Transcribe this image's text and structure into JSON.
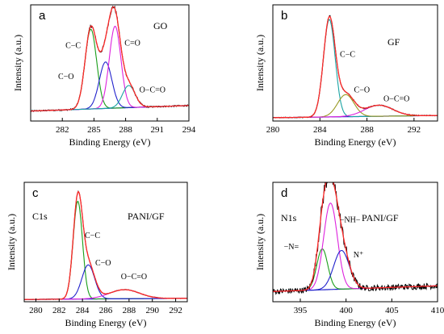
{
  "chart_data": [
    {
      "type": "line",
      "panel_label": "a",
      "title": "GO",
      "subtitle": "",
      "xlabel": "Binding Energy (eV)",
      "ylabel": "Intensity (a.u.)",
      "xlim": [
        279,
        294
      ],
      "xticks": [
        282,
        285,
        288,
        291,
        294
      ],
      "ylim": [
        0,
        1.05
      ],
      "grid": false,
      "peaks": [
        {
          "name": "C−C",
          "center": 284.7,
          "height": 0.72,
          "sigma": 0.55,
          "color": "#1a9e1a",
          "label_x": 282.3,
          "label_y": 0.66
        },
        {
          "name": "C−O",
          "center": 286.1,
          "height": 0.42,
          "sigma": 0.6,
          "color": "#2222cc",
          "label_x": 281.6,
          "label_y": 0.38
        },
        {
          "name": "C=O",
          "center": 287.0,
          "height": 0.74,
          "sigma": 0.55,
          "color": "#dd22dd",
          "label_x": 287.9,
          "label_y": 0.68
        },
        {
          "name": "O−C=O",
          "center": 288.3,
          "height": 0.2,
          "sigma": 0.6,
          "color": "#1aa3a3",
          "label_x": 289.3,
          "label_y": 0.26
        }
      ],
      "background": {
        "start": 0.09,
        "end": 0.14
      },
      "noise": 0.012,
      "colors": {
        "raw": "#000000",
        "fit": "#ff2a2a",
        "background": "#2222cc"
      }
    },
    {
      "type": "line",
      "panel_label": "b",
      "title": "GF",
      "subtitle": "",
      "xlabel": "Binding Energy (eV)",
      "ylabel": "Intensity (a.u.)",
      "xlim": [
        280,
        294
      ],
      "xticks": [
        280,
        284,
        288,
        292
      ],
      "ylim": [
        0,
        1.05
      ],
      "grid": false,
      "peaks": [
        {
          "name": "C−C",
          "center": 284.8,
          "height": 0.88,
          "sigma": 0.5,
          "color": "#1aa3a3",
          "label_x": 285.7,
          "label_y": 0.58
        },
        {
          "name": "C−O",
          "center": 286.2,
          "height": 0.2,
          "sigma": 0.7,
          "color": "#999922",
          "label_x": 286.9,
          "label_y": 0.26
        },
        {
          "name": "O−C=O",
          "center": 289.0,
          "height": 0.1,
          "sigma": 1.2,
          "color": "#dd22dd",
          "label_x": 289.4,
          "label_y": 0.18
        }
      ],
      "background": {
        "start": 0.03,
        "end": 0.05
      },
      "noise": 0.008,
      "colors": {
        "raw": "#000000",
        "fit": "#ff2a2a",
        "background": "#2222cc"
      }
    },
    {
      "type": "line",
      "panel_label": "c",
      "title": "PANI/GF",
      "subtitle": "C1s",
      "xlabel": "Binding Energy (eV)",
      "ylabel": "Intensity (a.u.)",
      "xlim": [
        279,
        293
      ],
      "xticks": [
        280,
        282,
        284,
        286,
        288,
        290,
        292
      ],
      "ylim": [
        0,
        1.05
      ],
      "grid": false,
      "peaks": [
        {
          "name": "C−C",
          "center": 283.6,
          "height": 0.86,
          "sigma": 0.4,
          "color": "#1a9e1a",
          "label_x": 284.2,
          "label_y": 0.56
        },
        {
          "name": "C−O",
          "center": 284.5,
          "height": 0.3,
          "sigma": 0.55,
          "color": "#2222cc",
          "label_x": 285.1,
          "label_y": 0.32
        },
        {
          "name": "O−C=O",
          "center": 287.6,
          "height": 0.08,
          "sigma": 1.3,
          "color": "#dd22dd",
          "label_x": 287.3,
          "label_y": 0.2
        }
      ],
      "background": {
        "start": 0.02,
        "end": 0.03
      },
      "noise": 0.005,
      "colors": {
        "raw": "#000000",
        "fit": "#ff2a2a",
        "background": "#2222cc"
      }
    },
    {
      "type": "line",
      "panel_label": "d",
      "title": "PANI/GF",
      "subtitle": "N1s",
      "xlabel": "Binding Energy (eV)",
      "ylabel": "Intensity (a.u.)",
      "xlim": [
        392,
        410
      ],
      "xticks": [
        395,
        400,
        405,
        410
      ],
      "ylim": [
        0,
        1.05
      ],
      "grid": false,
      "peaks": [
        {
          "name": "−N=",
          "center": 397.4,
          "height": 0.36,
          "sigma": 0.6,
          "color": "#1a9e1a",
          "label_x": 393.2,
          "label_y": 0.46
        },
        {
          "name": "−NH−",
          "center": 398.3,
          "height": 0.76,
          "sigma": 0.75,
          "color": "#dd22dd",
          "label_x": 399.3,
          "label_y": 0.7
        },
        {
          "name": "N⁺",
          "center": 399.5,
          "height": 0.34,
          "sigma": 0.85,
          "color": "#2222cc",
          "label_x": 400.8,
          "label_y": 0.39
        }
      ],
      "background": {
        "start": 0.09,
        "end": 0.14
      },
      "noise": 0.05,
      "colors": {
        "raw": "#000000",
        "fit": "#ff2a2a",
        "background": "#2222cc"
      }
    }
  ]
}
